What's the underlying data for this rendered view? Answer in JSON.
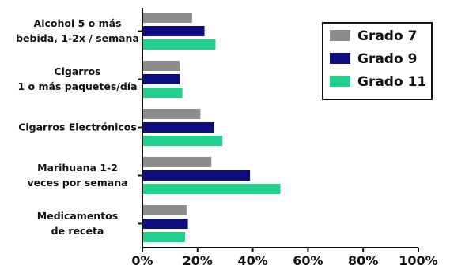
{
  "chart_data": {
    "type": "bar",
    "orientation": "horizontal",
    "categories": [
      [
        "Alcohol 5 o más",
        "bebida, 1-2x / semana"
      ],
      [
        "Cigarros",
        "1 o más paquetes/día"
      ],
      [
        "Cigarros Electrónicos"
      ],
      [
        "Marihuana 1-2",
        "veces por semana"
      ],
      [
        "Medicamentos",
        "de receta"
      ]
    ],
    "series": [
      {
        "name": "Grado 7",
        "color": "#8c8c8c",
        "values": [
          18,
          13.5,
          21,
          25,
          16
        ]
      },
      {
        "name": "Grado 9",
        "color": "#0d0d80",
        "values": [
          22.5,
          13.5,
          26,
          39,
          16.5
        ]
      },
      {
        "name": "Grado 11",
        "color": "#1fd18c",
        "values": [
          26.5,
          14.5,
          29,
          50,
          15.5
        ]
      }
    ],
    "xlim": [
      0,
      100
    ],
    "xticks": [
      "0%",
      "20%",
      "40%",
      "60%",
      "80%",
      "100%"
    ],
    "legend_position": "top-right",
    "grid": false
  }
}
